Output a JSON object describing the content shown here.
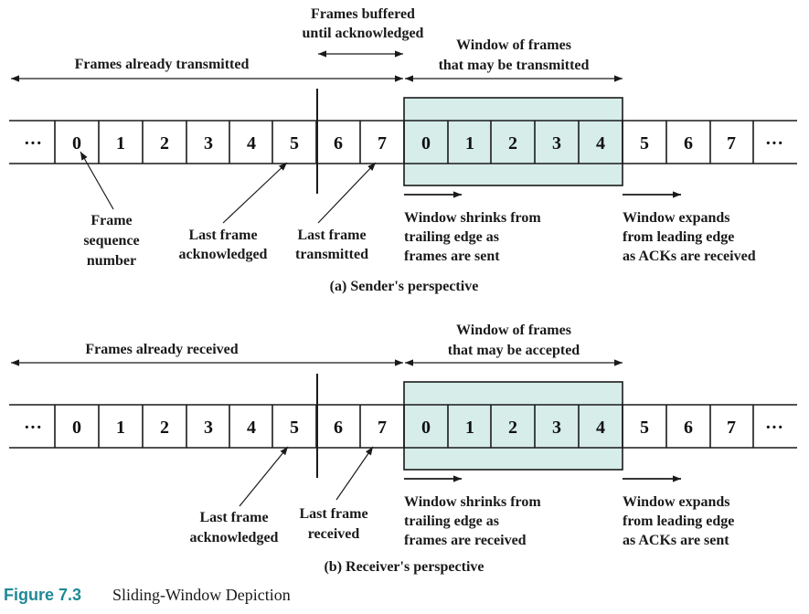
{
  "sender": {
    "cells": [
      "0",
      "1",
      "2",
      "3",
      "4",
      "5",
      "6",
      "7",
      "0",
      "1",
      "2",
      "3",
      "4",
      "5",
      "6",
      "7"
    ],
    "ellipsis": "···",
    "labels": {
      "buffered": [
        "Frames buffered",
        "until acknowledged"
      ],
      "already_transmitted": "Frames already transmitted",
      "window": [
        "Window of frames",
        "that may be transmitted"
      ],
      "frame_seq": [
        "Frame",
        "sequence",
        "number"
      ],
      "last_ack": [
        "Last frame",
        "acknowledged"
      ],
      "last_tx": [
        "Last frame",
        "transmitted"
      ],
      "shrinks": [
        "Window shrinks from",
        "trailing edge as",
        "frames are sent"
      ],
      "expands": [
        "Window expands",
        "from leading edge",
        "as ACKs are received"
      ]
    },
    "caption": "(a) Sender's perspective"
  },
  "receiver": {
    "cells": [
      "0",
      "1",
      "2",
      "3",
      "4",
      "5",
      "6",
      "7",
      "0",
      "1",
      "2",
      "3",
      "4",
      "5",
      "6",
      "7"
    ],
    "ellipsis": "···",
    "labels": {
      "already_received": "Frames already received",
      "window": [
        "Window of frames",
        "that may be accepted"
      ],
      "last_ack": [
        "Last frame",
        "acknowledged"
      ],
      "last_rx": [
        "Last frame",
        "received"
      ],
      "shrinks": [
        "Window shrinks from",
        "trailing edge as",
        "frames are received"
      ],
      "expands": [
        "Window expands",
        "from leading edge",
        "as ACKs are sent"
      ]
    },
    "caption": "(b) Receiver's perspective"
  },
  "figure": {
    "number": "Figure 7.3",
    "title": "Sliding-Window Depiction"
  },
  "colors": {
    "window_fill": "#d6ede9",
    "figure_number": "#1f8a96"
  }
}
